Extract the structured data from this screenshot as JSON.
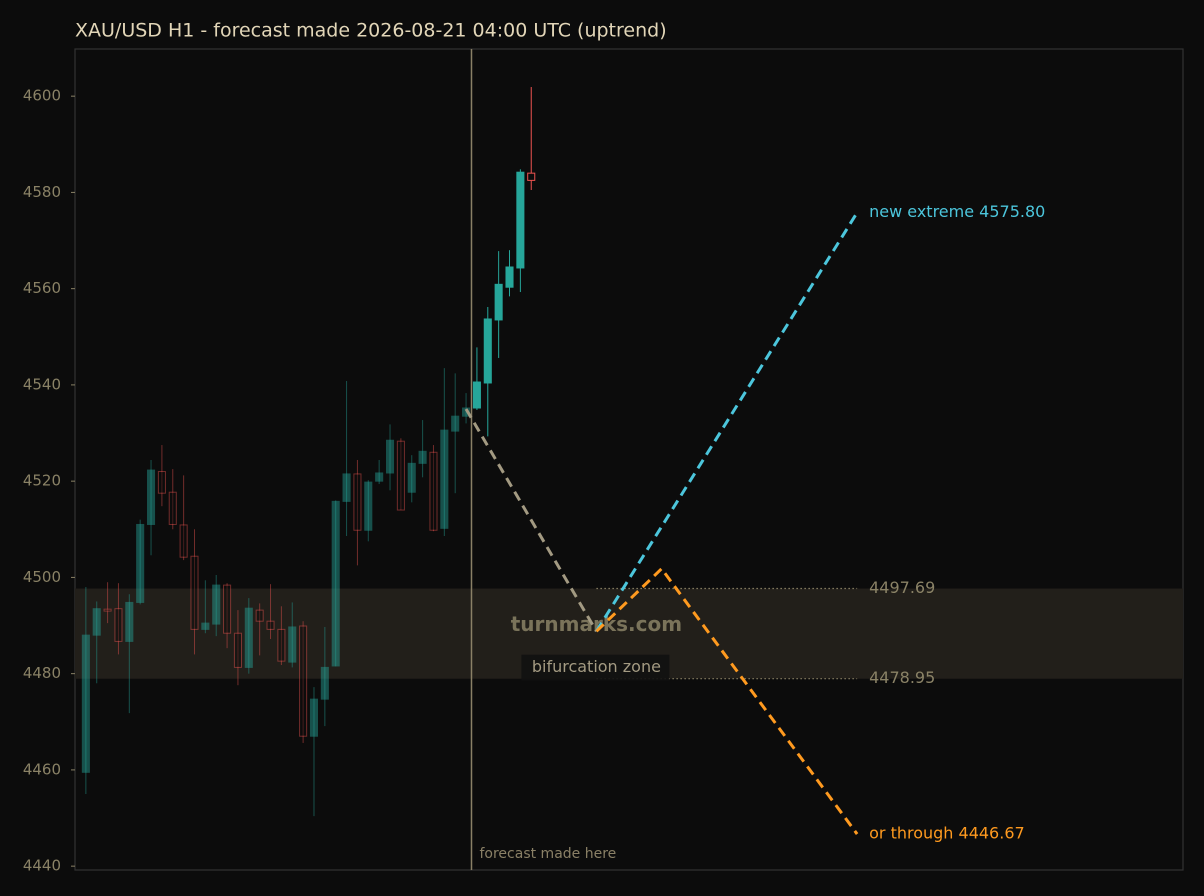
{
  "chart_data": {
    "type": "candlestick",
    "title": "XAU/USD H1 - forecast made 2026-08-21 04:00 UTC (uptrend)",
    "x": [
      0,
      1,
      2,
      3,
      4,
      5,
      6,
      7,
      8,
      9,
      10,
      11,
      12,
      13,
      14,
      15,
      16,
      17,
      18,
      19,
      20,
      21,
      22,
      23,
      24,
      25,
      26,
      27,
      28,
      29,
      30,
      31,
      32,
      33,
      34,
      35,
      36,
      37,
      38,
      39,
      40,
      41
    ],
    "open": [
      4459.5,
      4488,
      4493.4,
      4493.5,
      4486.7,
      4494.8,
      4511,
      4522,
      4517.7,
      4510.9,
      4504.4,
      4489.2,
      4490.3,
      4498.4,
      4488.4,
      4481.3,
      4493.2,
      4490.9,
      4489.2,
      4482.4,
      4489.9,
      4467,
      4474.7,
      4481.6,
      4515.8,
      4521.5,
      4509.8,
      4520,
      4521.7,
      4528.3,
      4517.7,
      4523.7,
      4526,
      4510.2,
      4530.4,
      4533.5,
      4535.2,
      4540.4,
      4553.5,
      4560.3,
      4564.3,
      4584
    ],
    "high": [
      4498,
      4495,
      4499,
      4498.8,
      4496.5,
      4512,
      4524.4,
      4527.5,
      4522.5,
      4521.2,
      4510,
      4499.4,
      4500.5,
      4498.8,
      4493.2,
      4495.7,
      4494.6,
      4498.6,
      4494,
      4494.8,
      4490.9,
      4477.2,
      4489.7,
      4516,
      4540.8,
      4524.4,
      4520.2,
      4524.4,
      4531.8,
      4528.9,
      4525.4,
      4532.7,
      4527.5,
      4543.5,
      4542.4,
      4538.3,
      4547.8,
      4556.2,
      4567.8,
      4568,
      4584.8,
      4601.9
    ],
    "low": [
      4455,
      4478,
      4490.5,
      4484,
      4471.8,
      4494.4,
      4504.6,
      4514.8,
      4510,
      4503.6,
      4484,
      4488.4,
      4487.8,
      4485.3,
      4477.6,
      4480,
      4483.8,
      4487.2,
      4481.8,
      4481.3,
      4465.6,
      4450.4,
      4469.1,
      4481.5,
      4508.6,
      4502.5,
      4507.5,
      4519.4,
      4518.1,
      4514,
      4515.6,
      4520.8,
      4509.6,
      4508.6,
      4517.5,
      4532,
      4534.8,
      4529.3,
      4545.6,
      4558.4,
      4559.3,
      4580.5
    ],
    "close": [
      4488,
      4493.5,
      4493,
      4486.7,
      4494.8,
      4511,
      4522.3,
      4517.5,
      4511,
      4504.2,
      4489.2,
      4490.5,
      4498.4,
      4488.4,
      4481.3,
      4493.6,
      4490.9,
      4489.2,
      4482.6,
      4489.7,
      4467,
      4474.7,
      4481.3,
      4515.8,
      4521.5,
      4509.8,
      4519.8,
      4521.7,
      4528.5,
      4514,
      4523.7,
      4526.2,
      4509.8,
      4530.6,
      4533.5,
      4535.2,
      4540.6,
      4553.7,
      4560.9,
      4564.5,
      4584.2,
      4582.5
    ],
    "up_color": "#26a69a",
    "down_color": "#ef5350",
    "xlim": [
      -1,
      101
    ],
    "ylim": [
      4439.2,
      4609.8
    ],
    "yticks": [
      4440,
      4460,
      4480,
      4500,
      4520,
      4540,
      4560,
      4580,
      4600
    ],
    "forecast_x": 35.5,
    "forecast_label": "forecast made here",
    "watermark": "turnmarks.com",
    "zone": {
      "label": "bifurcation zone",
      "upper": 4497.69,
      "lower": 4478.95,
      "x": [
        47,
        71
      ],
      "color": "#221f1a"
    },
    "forecast_paths": [
      {
        "color": "#a39a82",
        "x": [
          35,
          47
        ],
        "y": [
          4535,
          4488.8
        ]
      },
      {
        "color": "#4cc6dc",
        "x": [
          47,
          71
        ],
        "y": [
          4488.8,
          4575.8
        ],
        "label": "new extreme 4575.80"
      },
      {
        "color": "#ff9a1f",
        "x": [
          47,
          53,
          71
        ],
        "y": [
          4488.8,
          4501.8,
          4446.67
        ],
        "label": "or through 4446.67"
      }
    ]
  }
}
